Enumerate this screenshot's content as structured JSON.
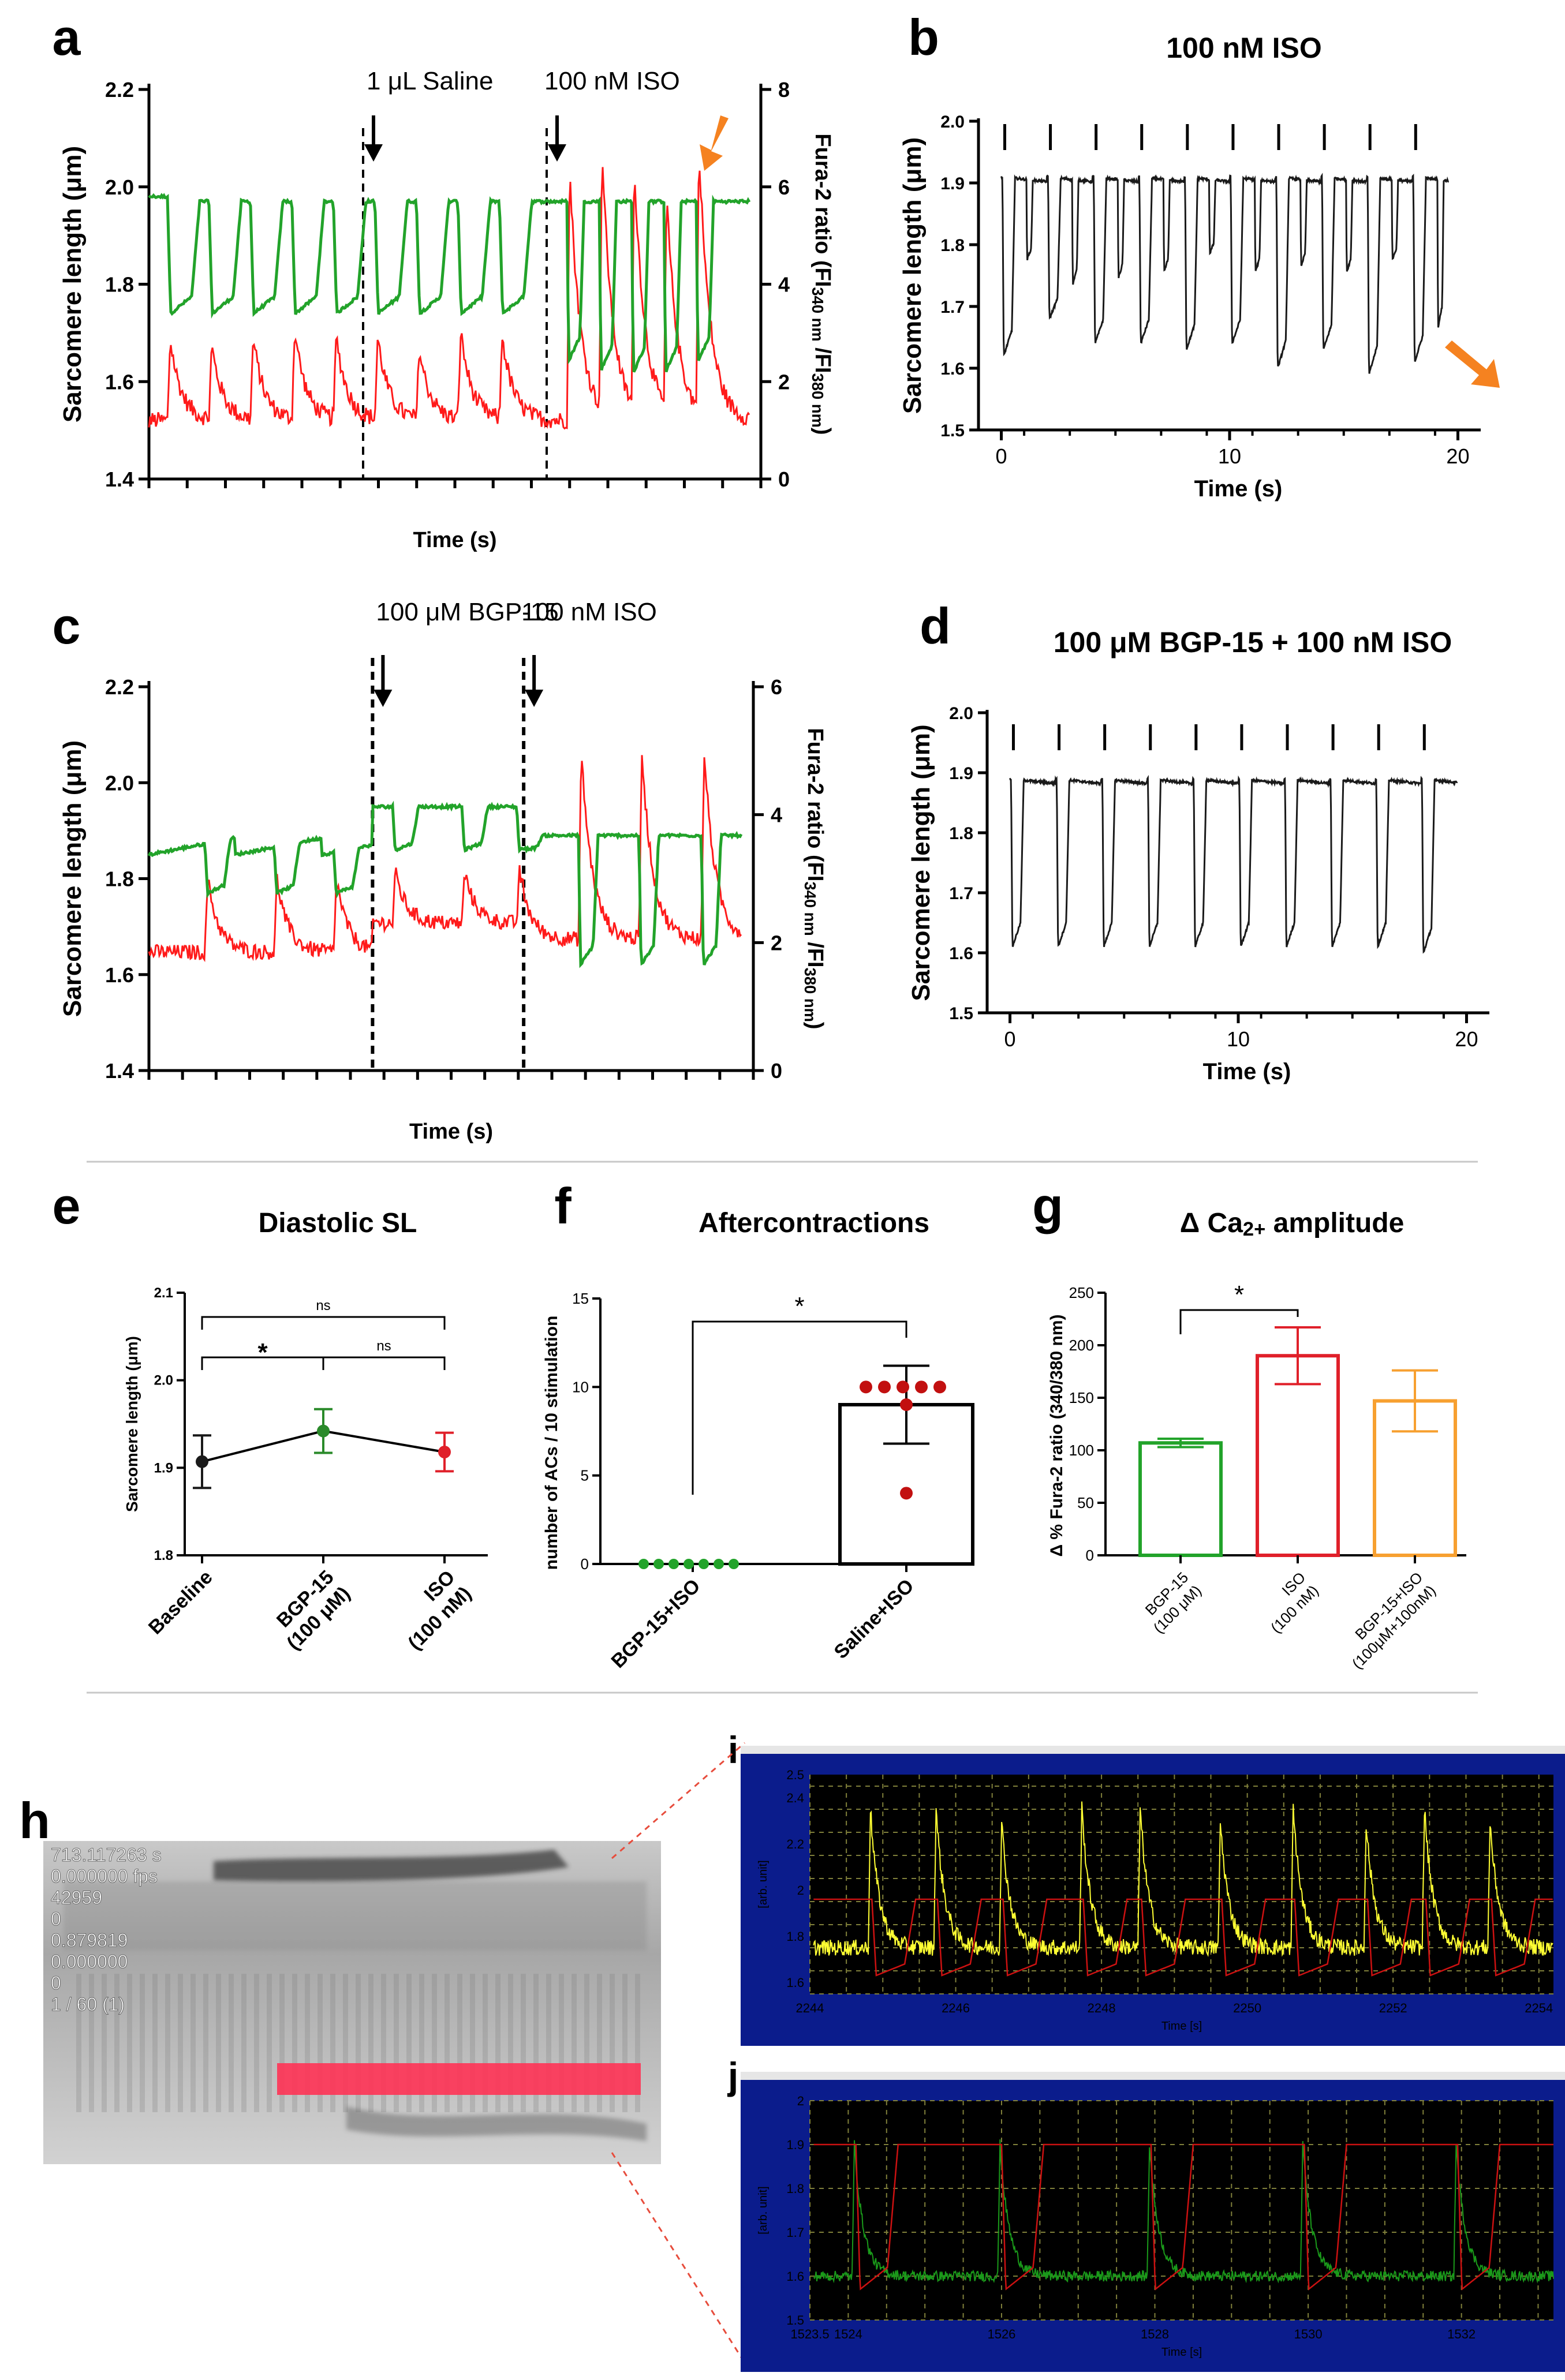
{
  "chart_data": [
    {
      "panel": "a",
      "type": "line",
      "title": "",
      "xlabel": "Time (s)",
      "ylabel": "Sarcomere length (μm)",
      "y2label_parts": [
        "Fura-2 ratio (FI",
        "340 nm",
        " /FI",
        "380 nm",
        ")"
      ],
      "ylim": [
        1.4,
        2.2
      ],
      "yticks": [
        "1.4",
        "1.6",
        "1.8",
        "2.0",
        "2.2"
      ],
      "y2lim": [
        0,
        8
      ],
      "y2ticks": [
        "0",
        "2",
        "4",
        "6",
        "8"
      ],
      "series": [
        {
          "name": "sarcomere length",
          "color": "#22a32a",
          "diastolic": 1.97,
          "systolic": 1.74,
          "beats_before_drug": 9,
          "systolic_iso": 1.63,
          "beats_iso": 5
        },
        {
          "name": "Fura-2 ratio",
          "color": "#ff1a1a",
          "baseline": 1.2,
          "peak": 2.8,
          "peak_iso": 7.0
        }
      ],
      "annotations": [
        {
          "label": "1 μL Saline",
          "at_fraction": 0.35
        },
        {
          "label": "100 nM ISO",
          "at_fraction": 0.65
        }
      ]
    },
    {
      "panel": "b",
      "type": "line",
      "title": "100 nM ISO",
      "xlabel": "Time (s)",
      "ylabel": "Sarcomere length (μm)",
      "xlim": [
        -1,
        21
      ],
      "xticks": [
        "0",
        "10",
        "20"
      ],
      "ylim": [
        1.5,
        2.0
      ],
      "yticks": [
        "1.5",
        "1.6",
        "1.7",
        "1.8",
        "1.9",
        "2.0"
      ],
      "stimulus_times": [
        0,
        2,
        4,
        6,
        8,
        10,
        12,
        14,
        16,
        18
      ],
      "diastolic": 1.91,
      "minima": [
        1.62,
        1.68,
        1.64,
        1.64,
        1.63,
        1.64,
        1.6,
        1.63,
        1.59,
        1.61
      ],
      "aftercontraction_minima": [
        1.78,
        1.74,
        1.75,
        1.76,
        1.79,
        1.76,
        1.77,
        1.76,
        1.78,
        1.67
      ]
    },
    {
      "panel": "c",
      "type": "line",
      "xlabel": "Time (s)",
      "ylabel": "Sarcomere length (μm)",
      "y2label_parts": [
        "Fura-2 ratio (FI",
        "340 nm",
        " /FI",
        "380 nm",
        ")"
      ],
      "ylim": [
        1.4,
        2.2
      ],
      "yticks": [
        "1.4",
        "1.6",
        "1.8",
        "2.0",
        "2.2"
      ],
      "y2lim": [
        0,
        6
      ],
      "y2ticks": [
        "0",
        "2",
        "4",
        "6"
      ],
      "series": [
        {
          "name": "sarcomere length",
          "color": "#22a32a",
          "diastolic_baseline": 1.88,
          "diastolic_bgp": 1.95,
          "diastolic_iso": 1.89,
          "systolic": 1.77,
          "systolic_iso": 1.62
        },
        {
          "name": "Fura-2 ratio",
          "color": "#ff1a1a",
          "baseline": 2.0,
          "peak": 3.0,
          "peak_iso": 5.0
        }
      ],
      "annotations": [
        {
          "label": "100 μM BGP-15",
          "at_fraction": 0.37
        },
        {
          "label": "100 nM ISO",
          "at_fraction": 0.62
        }
      ]
    },
    {
      "panel": "d",
      "type": "line",
      "title": "100 μM BGP-15 + 100 nM ISO",
      "xlabel": "Time (s)",
      "ylabel": "Sarcomere length (μm)",
      "xlim": [
        -1,
        21
      ],
      "xticks": [
        "0",
        "10",
        "20"
      ],
      "ylim": [
        1.5,
        2.0
      ],
      "yticks": [
        "1.5",
        "1.6",
        "1.7",
        "1.8",
        "1.9",
        "2.0"
      ],
      "stimulus_times": [
        0,
        2,
        4,
        6,
        8,
        10,
        12,
        14,
        16,
        18
      ],
      "diastolic": 1.89,
      "minima": [
        1.61,
        1.61,
        1.61,
        1.61,
        1.61,
        1.61,
        1.61,
        1.61,
        1.61,
        1.6
      ]
    },
    {
      "panel": "e",
      "type": "line",
      "title": "Diastolic SL",
      "ylabel": "Sarcomere length (μm)",
      "categories": [
        "Baseline",
        "BGP-15\n(100 μM)",
        "ISO\n(100 nM)"
      ],
      "values": [
        1.907,
        1.942,
        1.918
      ],
      "errors": [
        0.03,
        0.025,
        0.022
      ],
      "colors": [
        "#1a1a1a",
        "#2a8a2a",
        "#e0202a"
      ],
      "ylim": [
        1.8,
        2.1
      ],
      "yticks": [
        "1.8",
        "1.9",
        "2.0",
        "2.1"
      ],
      "significance": [
        {
          "pair": [
            0,
            2
          ],
          "label": "ns"
        },
        {
          "pair": [
            0,
            1
          ],
          "label": "*"
        },
        {
          "pair": [
            1,
            2
          ],
          "label": "ns"
        }
      ]
    },
    {
      "panel": "f",
      "type": "bar",
      "title": "Aftercontractions",
      "ylabel": "number of ACs / 10 stimulation",
      "categories": [
        "BGP-15+ISO",
        "Saline+ISO"
      ],
      "values": [
        0,
        9.0
      ],
      "errors": [
        0,
        2.2
      ],
      "points": [
        [
          0,
          0,
          0,
          0,
          0,
          0,
          0
        ],
        [
          10,
          10,
          10,
          10,
          10,
          9,
          4
        ]
      ],
      "point_colors": [
        "#22a32a",
        "#c21010"
      ],
      "ylim": [
        0,
        15
      ],
      "yticks": [
        "0",
        "5",
        "10",
        "15"
      ],
      "significance": [
        {
          "pair": [
            0,
            1
          ],
          "label": "*"
        }
      ]
    },
    {
      "panel": "g",
      "type": "bar",
      "title_parts": [
        "Δ Ca",
        "2+",
        " amplitude"
      ],
      "ylabel": "Δ % Fura-2 ratio (340/380 nm)",
      "categories": [
        "BGP-15\n(100 μM)",
        "ISO\n(100 nM)",
        "BGP-15+ISO\n(100μM+100nM)"
      ],
      "values": [
        107,
        190,
        147
      ],
      "errors": [
        4,
        27,
        29
      ],
      "colors": [
        "#22a32a",
        "#e0202a",
        "#f7a030"
      ],
      "ylim": [
        0,
        250
      ],
      "yticks": [
        "0",
        "50",
        "100",
        "150",
        "200",
        "250"
      ],
      "significance": [
        {
          "pair": [
            0,
            1
          ],
          "label": "*"
        }
      ]
    },
    {
      "panel": "i",
      "type": "line",
      "ylabel": "[arb. unit]",
      "xlabel": "Time [s]",
      "xlim": [
        2244,
        2254.2
      ],
      "xticks": [
        "2244",
        "2246",
        "2248",
        "2250",
        "2252",
        "2254"
      ],
      "ylim": [
        1.55,
        2.5
      ],
      "yticks": [
        "1.6",
        "1.8",
        "2",
        "2.2",
        "2.4",
        "2.5"
      ],
      "series": [
        {
          "name": "Fura-2 ratio",
          "color": "#ffff33",
          "baseline": 1.75,
          "peak": 2.3
        },
        {
          "name": "sarcomere length",
          "color": "#cc1111",
          "diastolic": 1.96,
          "systolic": 1.63
        }
      ]
    },
    {
      "panel": "j",
      "type": "line",
      "ylabel": "[arb. unit]",
      "xlabel": "Time [s]",
      "xlim": [
        1523.5,
        1533.2
      ],
      "xticks": [
        "1523.5",
        "1524",
        "1526",
        "1528",
        "1530",
        "1532"
      ],
      "ylim": [
        1.5,
        2.0
      ],
      "yticks": [
        "1.5",
        "1.6",
        "1.7",
        "1.8",
        "1.9",
        "2"
      ],
      "series": [
        {
          "name": "Fura-2 ratio",
          "color": "#1a9a1a",
          "baseline": 1.6,
          "peak": 1.9
        },
        {
          "name": "sarcomere length",
          "color": "#cc1111",
          "diastolic": 1.9,
          "systolic": 1.57
        }
      ]
    }
  ],
  "panel_labels": {
    "a": "a",
    "b": "b",
    "c": "c",
    "d": "d",
    "e": "e",
    "f": "f",
    "g": "g",
    "h": "h",
    "i": "i",
    "j": "j"
  },
  "micrograph": {
    "overlay_lines": [
      "713.117263 s",
      "0.000000 fps",
      "42959",
      "0",
      "0.879819",
      "0.000000",
      "0",
      "1 / 60 (1)"
    ],
    "roi_color": "#ff3355"
  }
}
